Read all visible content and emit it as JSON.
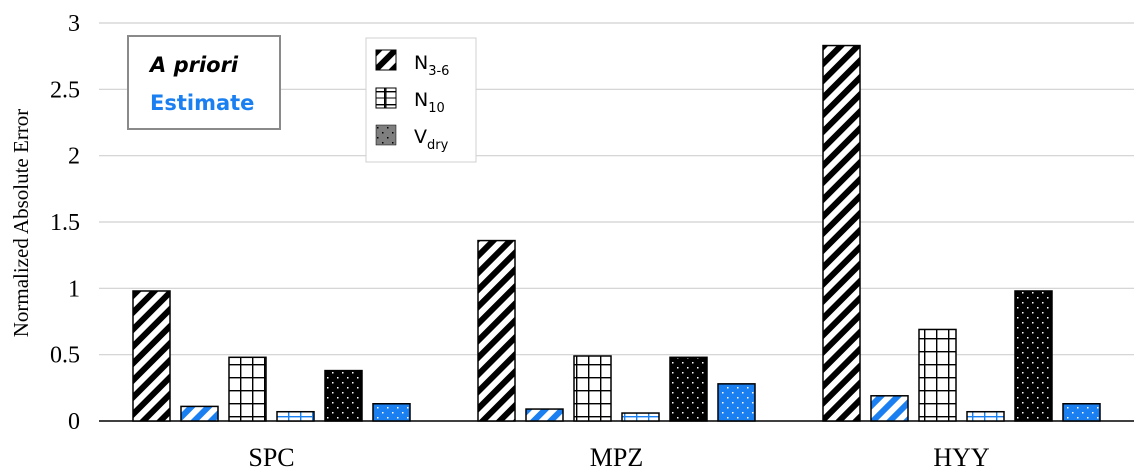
{
  "chart_data": {
    "type": "bar",
    "ylabel": "Normalized Absolute Error",
    "ylim": [
      0,
      3
    ],
    "yticks": [
      "0",
      "0.5",
      "1",
      "1.5",
      "2",
      "2.5",
      "3"
    ],
    "grid": true,
    "categories": [
      "SPC",
      "MPZ",
      "HYY"
    ],
    "series": [
      {
        "name": "N3-6 A priori",
        "values": [
          0.98,
          1.36,
          2.83
        ]
      },
      {
        "name": "N3-6 Estimate",
        "values": [
          0.11,
          0.09,
          0.19
        ]
      },
      {
        "name": "N10 A priori",
        "values": [
          0.48,
          0.49,
          0.69
        ]
      },
      {
        "name": "N10 Estimate",
        "values": [
          0.07,
          0.06,
          0.07
        ]
      },
      {
        "name": "Vdry A priori",
        "values": [
          0.38,
          0.48,
          0.98
        ]
      },
      {
        "name": "Vdry Estimate",
        "values": [
          0.13,
          0.28,
          0.13
        ]
      }
    ],
    "legend": {
      "placement": "top-left",
      "items": [
        {
          "main": "N",
          "sub": "3-6",
          "pattern": "diagonal"
        },
        {
          "main": "N",
          "sub": "10",
          "pattern": "grid"
        },
        {
          "main": "V",
          "sub": "dry",
          "pattern": "dots"
        }
      ]
    },
    "annotation": {
      "line1": "A priori",
      "line2": "Estimate"
    },
    "colors": {
      "apriori": "#000000",
      "estimate": "#1a7ff0",
      "gridline": "#d0d0d0",
      "legend_swatch_dots": "#7f7f7f"
    }
  }
}
